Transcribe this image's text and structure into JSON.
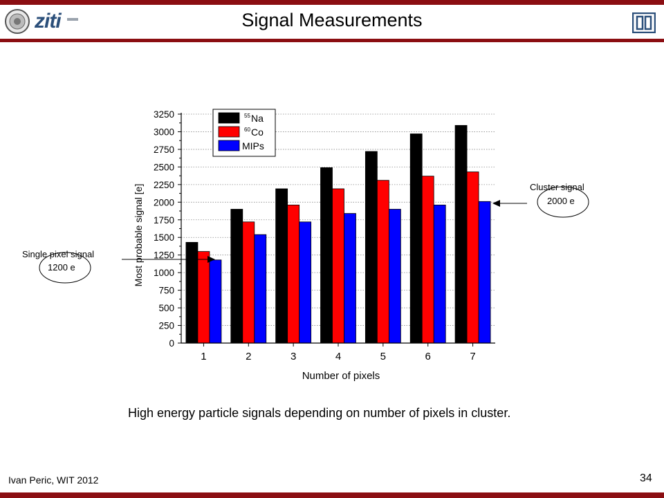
{
  "header": {
    "title": "Signal Measurements",
    "logo_text": "ziti"
  },
  "footer": {
    "author": "Ivan Peric, WIT 2012",
    "page": "34"
  },
  "caption": "High energy particle signals depending on number of pixels in cluster.",
  "annotations": {
    "single": {
      "title": "Single pixel signal",
      "value": "1200 e"
    },
    "cluster": {
      "title": "Cluster signal",
      "value": "2000 e"
    }
  },
  "colors": {
    "accent": "#8b0e12",
    "na": "#000000",
    "co": "#ff0000",
    "mip": "#0000ff"
  },
  "chart_data": {
    "type": "bar",
    "categories": [
      "1",
      "2",
      "3",
      "4",
      "5",
      "6",
      "7"
    ],
    "series": [
      {
        "name": "Na",
        "sup": "55",
        "color": "#000000",
        "values": [
          1430,
          1900,
          2190,
          2490,
          2720,
          2970,
          3090
        ]
      },
      {
        "name": "Co",
        "sup": "60",
        "color": "#ff0000",
        "values": [
          1300,
          1720,
          1960,
          2190,
          2310,
          2370,
          2430
        ]
      },
      {
        "name": "MIPs",
        "sup": "",
        "color": "#0000ff",
        "values": [
          1180,
          1540,
          1720,
          1840,
          1900,
          1960,
          2010
        ]
      }
    ],
    "xlabel": "Number of pixels",
    "ylabel": "Most probable signal [e]",
    "ylim": [
      0,
      3250
    ],
    "yticks": [
      0,
      250,
      500,
      750,
      1000,
      1250,
      1500,
      1750,
      2000,
      2250,
      2500,
      2750,
      3000,
      3250
    ],
    "grid": true,
    "legend": "top-left"
  }
}
